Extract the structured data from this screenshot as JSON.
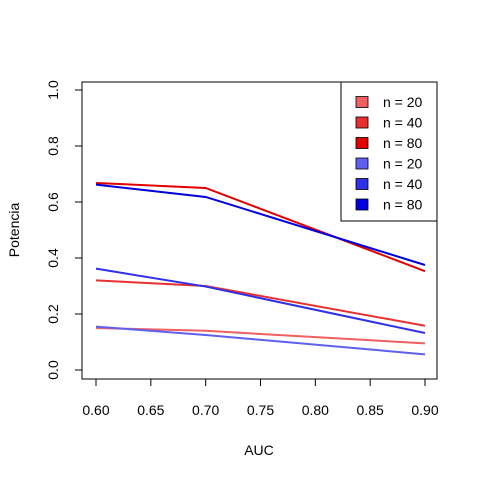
{
  "chart_data": {
    "type": "line",
    "xlabel": "AUC",
    "ylabel": "Potencia",
    "xlim": [
      0.6,
      0.9
    ],
    "ylim": [
      0.0,
      1.0
    ],
    "xticks": [
      "0.60",
      "0.65",
      "0.70",
      "0.75",
      "0.80",
      "0.85",
      "0.90"
    ],
    "yticks": [
      "0.0",
      "0.2",
      "0.4",
      "0.6",
      "0.8",
      "1.0"
    ],
    "grid": false,
    "legend_position": "top-right",
    "series": [
      {
        "name": "n = 20",
        "color": "#f06060",
        "x": [
          0.6,
          0.7,
          0.9
        ],
        "y": [
          0.15,
          0.14,
          0.095
        ]
      },
      {
        "name": "n = 40",
        "color": "#e83030",
        "x": [
          0.6,
          0.7,
          0.9
        ],
        "y": [
          0.32,
          0.3,
          0.158
        ]
      },
      {
        "name": "n = 80",
        "color": "#e00000",
        "x": [
          0.6,
          0.7,
          0.9
        ],
        "y": [
          0.668,
          0.65,
          0.353
        ]
      },
      {
        "name": "n = 20",
        "color": "#6060f0",
        "x": [
          0.6,
          0.7,
          0.9
        ],
        "y": [
          0.155,
          0.125,
          0.056
        ]
      },
      {
        "name": "n = 40",
        "color": "#3030e8",
        "x": [
          0.6,
          0.7,
          0.9
        ],
        "y": [
          0.362,
          0.298,
          0.132
        ]
      },
      {
        "name": "n = 80",
        "color": "#0000e0",
        "x": [
          0.6,
          0.7,
          0.9
        ],
        "y": [
          0.662,
          0.618,
          0.375
        ]
      }
    ]
  }
}
